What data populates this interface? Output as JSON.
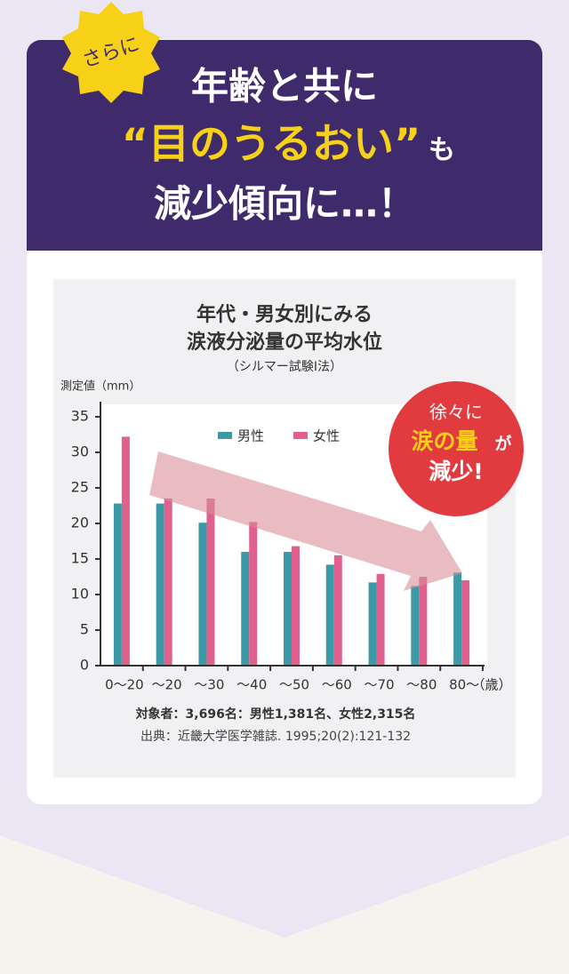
{
  "header": {
    "badge": "さらに",
    "headline": [
      "年齢と共に",
      "“目のうるおい”",
      "も",
      "減少傾向に…！"
    ]
  },
  "chart_data": {
    "type": "bar",
    "title": [
      "年代・男女別にみる",
      "涙液分泌量の平均水位"
    ],
    "subtitle": "（シルマー試験Ⅰ法）",
    "y_label": "測定値（mm）",
    "x_unit": "（歳）",
    "categories": [
      "0～20",
      "～20",
      "～30",
      "～40",
      "～50",
      "～60",
      "～70",
      "～80",
      "80～"
    ],
    "series": [
      {
        "name": "男性",
        "color": "#3b9aa6",
        "values": [
          22.8,
          22.8,
          20.1,
          16,
          16,
          14.2,
          11.7,
          11.2,
          13.1
        ]
      },
      {
        "name": "女性",
        "color": "#e0608e",
        "values": [
          32.2,
          23.5,
          23.5,
          20.2,
          16.8,
          15.5,
          12.9,
          12.5,
          12.0
        ]
      }
    ],
    "ylim": [
      0,
      35
    ],
    "yticks": [
      0,
      5,
      10,
      15,
      20,
      25,
      30,
      35
    ],
    "legend": "top",
    "callout": [
      "徐々に",
      "涙の量",
      "が",
      "減少!"
    ],
    "notes": [
      "対象者：3,696名：男性1,381名、女性2,315名",
      "出典：近畿大学医学雑誌. 1995;20(2):121-132"
    ]
  }
}
